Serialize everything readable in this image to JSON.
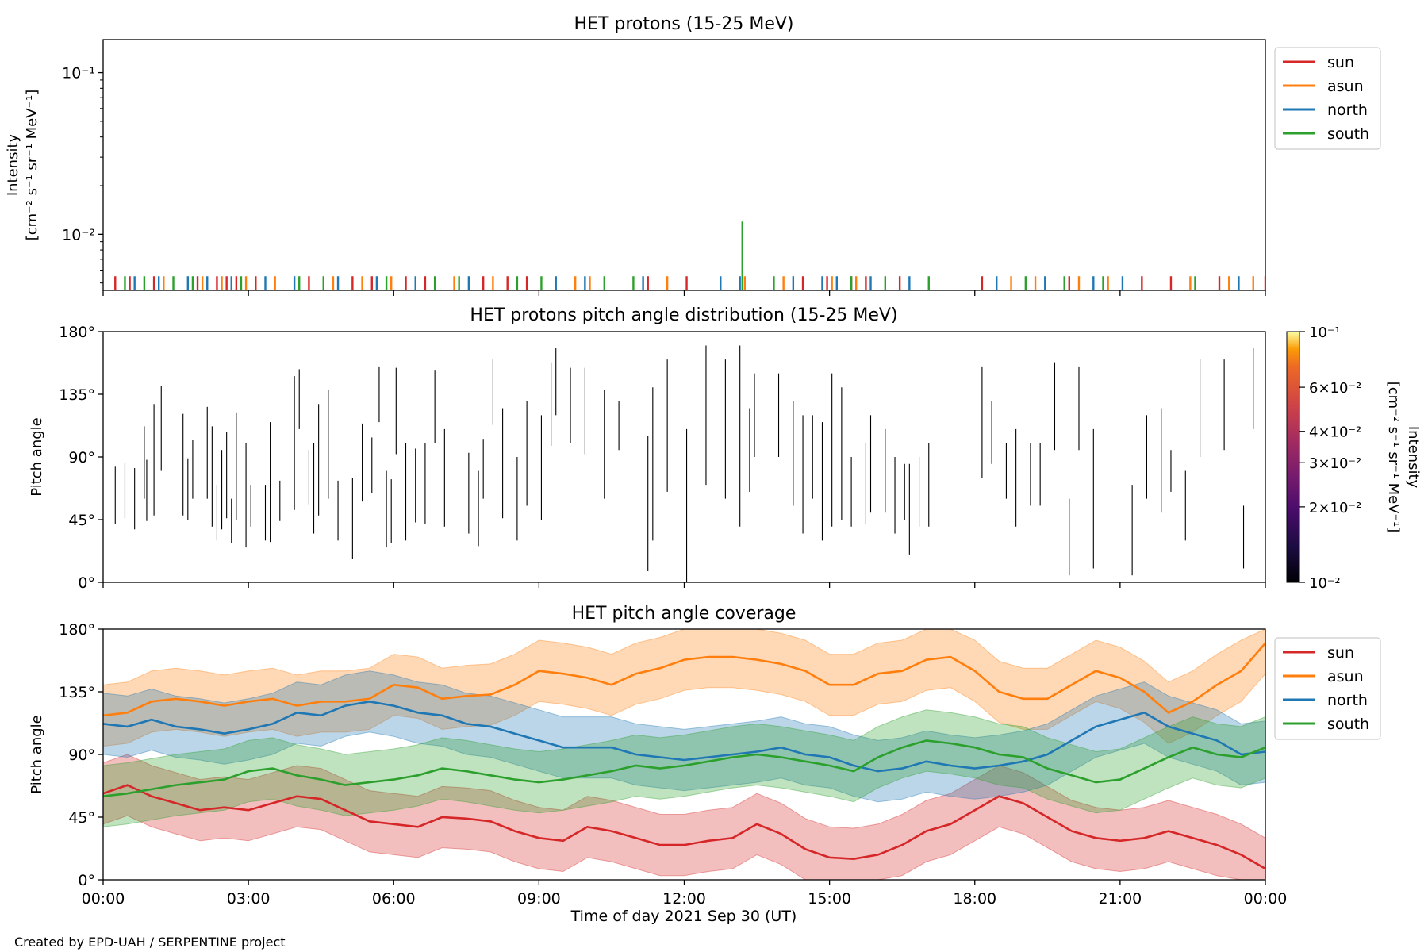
{
  "figure": {
    "credit": "Created by EPD-UAH / SERPENTINE project",
    "xlabel": "Time of day 2021 Sep 30 (UT)",
    "x_ticks": [
      "00:00",
      "03:00",
      "06:00",
      "09:00",
      "12:00",
      "15:00",
      "18:00",
      "21:00",
      "00:00"
    ]
  },
  "colors": {
    "sun": "#d62728",
    "asun": "#ff7f0e",
    "north": "#1f77b4",
    "south": "#2ca02c"
  },
  "chart_data": [
    {
      "type": "line",
      "title": "HET protons (15-25 MeV)",
      "ylabel_lines": [
        "Intensity",
        "[cm⁻² s⁻¹ sr⁻¹ MeV⁻¹]"
      ],
      "yscale": "log",
      "ylim": [
        0.0045,
        0.16
      ],
      "y_ticks": [
        {
          "value": 0.01,
          "label": "10⁻²"
        },
        {
          "value": 0.1,
          "label": "10⁻¹"
        }
      ],
      "xlim_hours": [
        0,
        24
      ],
      "legend": [
        "sun",
        "asun",
        "north",
        "south"
      ],
      "legend_position": "outside right",
      "series": [
        {
          "name": "sun",
          "spikes_hours": [
            0.25,
            0.55,
            1.05,
            1.95,
            2.35,
            2.55,
            2.75,
            3.15,
            4.25,
            5.15,
            5.55,
            6.25,
            6.65,
            7.85,
            8.35,
            8.75,
            11.25,
            12.05,
            14.45,
            14.95,
            15.45,
            15.75,
            16.45,
            18.15,
            19.95,
            21.45,
            22.05,
            23.05,
            24.0
          ]
        },
        {
          "name": "asun",
          "spikes_hours": [
            1.25,
            2.05,
            2.45,
            2.95,
            3.55,
            4.75,
            5.35,
            5.95,
            7.25,
            8.05,
            9.75,
            10.05,
            11.65,
            13.25,
            14.05,
            15.05,
            15.55,
            18.75,
            19.25,
            20.15,
            20.75,
            22.45,
            23.25,
            23.75
          ]
        },
        {
          "name": "north",
          "spikes_hours": [
            0.65,
            1.15,
            1.75,
            2.15,
            2.65,
            3.35,
            3.95,
            4.85,
            5.65,
            6.45,
            7.55,
            9.35,
            9.95,
            11.15,
            12.75,
            13.15,
            14.25,
            14.85,
            15.15,
            15.85,
            16.65,
            18.45,
            19.45,
            20.45,
            21.05,
            23.45
          ]
        },
        {
          "name": "south",
          "spikes": [
            {
              "t": 0.45,
              "v": 0.0055
            },
            {
              "t": 0.85,
              "v": 0.0055
            },
            {
              "t": 1.45,
              "v": 0.0055
            },
            {
              "t": 1.85,
              "v": 0.0055
            },
            {
              "t": 2.85,
              "v": 0.0055
            },
            {
              "t": 4.05,
              "v": 0.0055
            },
            {
              "t": 4.55,
              "v": 0.0055
            },
            {
              "t": 5.85,
              "v": 0.0055
            },
            {
              "t": 6.85,
              "v": 0.0055
            },
            {
              "t": 7.35,
              "v": 0.0055
            },
            {
              "t": 8.55,
              "v": 0.0055
            },
            {
              "t": 9.05,
              "v": 0.0055
            },
            {
              "t": 10.35,
              "v": 0.0055
            },
            {
              "t": 10.95,
              "v": 0.0055
            },
            {
              "t": 13.2,
              "v": 0.012
            },
            {
              "t": 13.85,
              "v": 0.0055
            },
            {
              "t": 15.45,
              "v": 0.0055
            },
            {
              "t": 16.15,
              "v": 0.0055
            },
            {
              "t": 17.05,
              "v": 0.0055
            },
            {
              "t": 19.05,
              "v": 0.0055
            },
            {
              "t": 19.85,
              "v": 0.0055
            },
            {
              "t": 20.65,
              "v": 0.0055
            },
            {
              "t": 22.55,
              "v": 0.0055
            }
          ]
        }
      ]
    },
    {
      "type": "heatmap",
      "title": "HET protons pitch angle distribution (15-25 MeV)",
      "ylabel": "Pitch angle",
      "ylim": [
        0,
        180
      ],
      "y_ticks": [
        "0°",
        "45°",
        "90°",
        "135°",
        "180°"
      ],
      "xlim_hours": [
        0,
        24
      ],
      "colorbar": {
        "label_lines": [
          "Intensity",
          "[cm⁻² s⁻¹ sr⁻¹ MeV⁻¹]"
        ],
        "scale": "log",
        "range": [
          0.01,
          0.1
        ],
        "ticks": [
          {
            "value": 0.01,
            "label": "10⁻²"
          },
          {
            "value": 0.02,
            "label": "2×10⁻²"
          },
          {
            "value": 0.03,
            "label": "3×10⁻²"
          },
          {
            "value": 0.04,
            "label": "4×10⁻²"
          },
          {
            "value": 0.06,
            "label": "6×10⁻²"
          },
          {
            "value": 0.1,
            "label": "10⁻¹"
          }
        ]
      },
      "segments": [
        [
          0.25,
          42,
          83
        ],
        [
          0.45,
          46,
          86
        ],
        [
          0.65,
          38,
          82
        ],
        [
          0.85,
          60,
          112
        ],
        [
          0.9,
          44,
          88
        ],
        [
          1.05,
          48,
          128
        ],
        [
          1.2,
          80,
          141
        ],
        [
          1.65,
          48,
          121
        ],
        [
          1.75,
          45,
          89
        ],
        [
          1.85,
          60,
          102
        ],
        [
          2.15,
          60,
          126
        ],
        [
          2.25,
          40,
          112
        ],
        [
          2.35,
          30,
          70
        ],
        [
          2.45,
          38,
          95
        ],
        [
          2.55,
          46,
          108
        ],
        [
          2.65,
          28,
          60
        ],
        [
          2.75,
          45,
          122
        ],
        [
          2.95,
          25,
          100
        ],
        [
          3.05,
          40,
          70
        ],
        [
          3.35,
          30,
          70
        ],
        [
          3.45,
          29,
          115
        ],
        [
          3.65,
          44,
          73
        ],
        [
          3.95,
          52,
          148
        ],
        [
          4.05,
          110,
          153
        ],
        [
          4.25,
          56,
          95
        ],
        [
          4.35,
          35,
          100
        ],
        [
          4.45,
          48,
          128
        ],
        [
          4.65,
          60,
          138
        ],
        [
          4.85,
          30,
          73
        ],
        [
          5.15,
          17,
          75
        ],
        [
          5.35,
          58,
          114
        ],
        [
          5.55,
          64,
          104
        ],
        [
          5.7,
          115,
          155
        ],
        [
          5.85,
          25,
          80
        ],
        [
          5.95,
          28,
          74
        ],
        [
          6.05,
          92,
          154
        ],
        [
          6.25,
          30,
          100
        ],
        [
          6.45,
          43,
          96
        ],
        [
          6.65,
          42,
          100
        ],
        [
          6.85,
          100,
          152
        ],
        [
          7.05,
          40,
          110
        ],
        [
          7.55,
          35,
          93
        ],
        [
          7.75,
          26,
          80
        ],
        [
          7.85,
          60,
          103
        ],
        [
          8.05,
          113,
          160
        ],
        [
          8.25,
          46,
          125
        ],
        [
          8.55,
          30,
          90
        ],
        [
          8.75,
          55,
          130
        ],
        [
          9.05,
          45,
          120
        ],
        [
          9.25,
          98,
          158
        ],
        [
          9.35,
          120,
          168
        ],
        [
          9.65,
          100,
          154
        ],
        [
          9.95,
          92,
          154
        ],
        [
          10.35,
          60,
          138
        ],
        [
          10.65,
          95,
          130
        ],
        [
          11.25,
          8,
          105
        ],
        [
          11.35,
          30,
          140
        ],
        [
          11.65,
          65,
          160
        ],
        [
          12.05,
          0,
          110
        ],
        [
          12.45,
          70,
          170
        ],
        [
          12.85,
          60,
          160
        ],
        [
          13.15,
          40,
          170
        ],
        [
          13.35,
          65,
          125
        ],
        [
          13.45,
          90,
          150
        ],
        [
          13.95,
          90,
          150
        ],
        [
          14.25,
          55,
          130
        ],
        [
          14.45,
          35,
          120
        ],
        [
          14.65,
          60,
          120
        ],
        [
          14.85,
          30,
          115
        ],
        [
          15.05,
          40,
          150
        ],
        [
          15.25,
          45,
          140
        ],
        [
          15.45,
          40,
          90
        ],
        [
          15.75,
          42,
          100
        ],
        [
          15.85,
          50,
          120
        ],
        [
          16.15,
          50,
          110
        ],
        [
          16.35,
          35,
          90
        ],
        [
          16.55,
          45,
          85
        ],
        [
          16.65,
          20,
          85
        ],
        [
          16.85,
          40,
          90
        ],
        [
          17.05,
          40,
          100
        ],
        [
          18.15,
          75,
          155
        ],
        [
          18.35,
          85,
          130
        ],
        [
          18.65,
          60,
          100
        ],
        [
          18.85,
          40,
          110
        ],
        [
          19.15,
          55,
          100
        ],
        [
          19.35,
          55,
          100
        ],
        [
          19.65,
          95,
          158
        ],
        [
          19.95,
          5,
          60
        ],
        [
          20.15,
          95,
          155
        ],
        [
          20.45,
          10,
          110
        ],
        [
          21.25,
          5,
          70
        ],
        [
          21.55,
          60,
          120
        ],
        [
          21.85,
          50,
          125
        ],
        [
          22.05,
          65,
          95
        ],
        [
          22.35,
          30,
          80
        ],
        [
          22.65,
          90,
          160
        ],
        [
          23.15,
          95,
          160
        ],
        [
          23.55,
          10,
          55
        ],
        [
          23.75,
          110,
          168
        ],
        [
          24.0,
          85,
          170
        ]
      ]
    },
    {
      "type": "area",
      "title": "HET pitch angle coverage",
      "ylabel": "Pitch angle",
      "ylim": [
        0,
        180
      ],
      "y_ticks": [
        "0°",
        "45°",
        "90°",
        "135°",
        "180°"
      ],
      "xlim_hours": [
        0,
        24
      ],
      "legend": [
        "sun",
        "asun",
        "north",
        "south"
      ],
      "legend_position": "outside right",
      "x_hours": [
        0,
        0.5,
        1,
        1.5,
        2,
        2.5,
        3,
        3.5,
        4,
        4.5,
        5,
        5.5,
        6,
        6.5,
        7,
        7.5,
        8,
        8.5,
        9,
        9.5,
        10,
        10.5,
        11,
        11.5,
        12,
        12.5,
        13,
        13.5,
        14,
        14.5,
        15,
        15.5,
        16,
        16.5,
        17,
        17.5,
        18,
        18.5,
        19,
        19.5,
        20,
        20.5,
        21,
        21.5,
        22,
        22.5,
        23,
        23.5,
        24
      ],
      "series": [
        {
          "name": "sun",
          "half_width": 22,
          "values": [
            62,
            68,
            60,
            55,
            50,
            52,
            50,
            55,
            60,
            58,
            50,
            42,
            40,
            38,
            45,
            44,
            42,
            35,
            30,
            28,
            38,
            35,
            30,
            25,
            25,
            28,
            30,
            40,
            33,
            22,
            16,
            15,
            18,
            25,
            35,
            40,
            50,
            60,
            55,
            45,
            35,
            30,
            28,
            30,
            35,
            30,
            25,
            18,
            8
          ]
        },
        {
          "name": "asun",
          "half_width": 22,
          "values": [
            118,
            120,
            128,
            130,
            128,
            125,
            128,
            130,
            125,
            128,
            128,
            130,
            140,
            138,
            130,
            132,
            133,
            140,
            150,
            148,
            145,
            140,
            148,
            152,
            158,
            160,
            160,
            158,
            155,
            150,
            140,
            140,
            148,
            150,
            158,
            160,
            150,
            135,
            130,
            130,
            140,
            150,
            145,
            135,
            120,
            128,
            140,
            150,
            170
          ]
        },
        {
          "name": "north",
          "half_width": 22,
          "values": [
            112,
            110,
            115,
            110,
            108,
            105,
            108,
            112,
            120,
            118,
            125,
            128,
            125,
            120,
            118,
            112,
            110,
            105,
            100,
            95,
            95,
            95,
            90,
            88,
            86,
            88,
            90,
            92,
            95,
            90,
            88,
            82,
            78,
            80,
            85,
            82,
            80,
            82,
            85,
            90,
            100,
            110,
            115,
            120,
            110,
            105,
            100,
            90,
            92
          ]
        },
        {
          "name": "south",
          "half_width": 22,
          "values": [
            60,
            62,
            65,
            68,
            70,
            72,
            78,
            80,
            75,
            72,
            68,
            70,
            72,
            75,
            80,
            78,
            75,
            72,
            70,
            72,
            75,
            78,
            82,
            80,
            82,
            85,
            88,
            90,
            88,
            85,
            82,
            78,
            88,
            95,
            100,
            98,
            95,
            90,
            88,
            80,
            75,
            70,
            72,
            80,
            88,
            95,
            90,
            88,
            95
          ]
        }
      ]
    }
  ]
}
